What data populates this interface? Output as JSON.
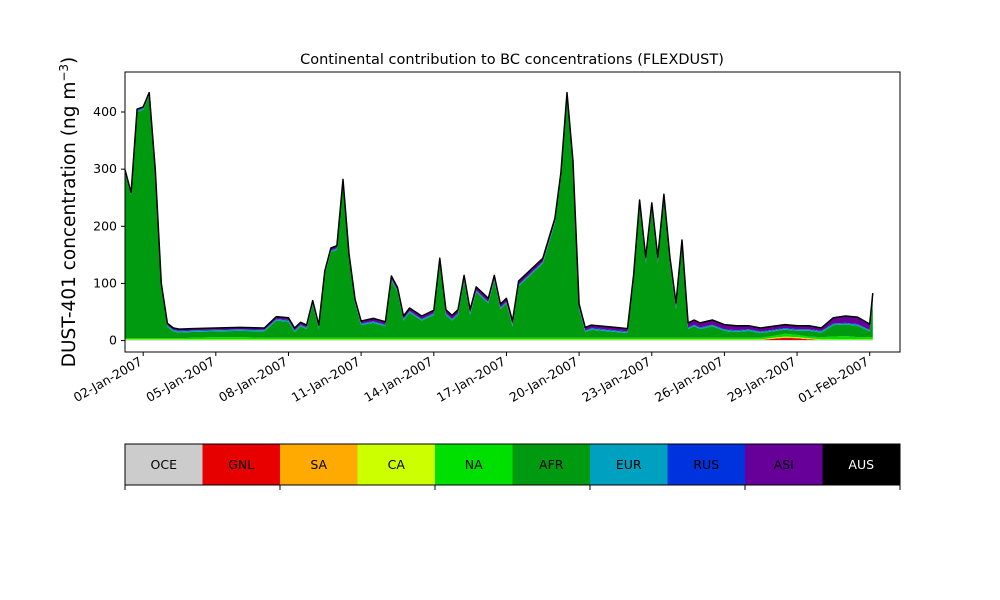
{
  "chart_data": {
    "type": "area",
    "stacked": true,
    "title": "Continental contribution to BC concentrations (FLEXDUST)",
    "ylabel_prefix": "DUST-401 concentration (ng m",
    "ylabel_sup": "−3",
    "ylabel_suffix": ")",
    "xlabel": "",
    "xlim": [
      "2007-01-01T06:00",
      "2007-02-02T06:00"
    ],
    "ylim": [
      -20,
      470
    ],
    "yticks": [
      0,
      100,
      200,
      300,
      400
    ],
    "xticks": [
      {
        "date": "2007-01-02",
        "label": "02-Jan-2007"
      },
      {
        "date": "2007-01-05",
        "label": "05-Jan-2007"
      },
      {
        "date": "2007-01-08",
        "label": "08-Jan-2007"
      },
      {
        "date": "2007-01-11",
        "label": "11-Jan-2007"
      },
      {
        "date": "2007-01-14",
        "label": "14-Jan-2007"
      },
      {
        "date": "2007-01-17",
        "label": "17-Jan-2007"
      },
      {
        "date": "2007-01-20",
        "label": "20-Jan-2007"
      },
      {
        "date": "2007-01-23",
        "label": "23-Jan-2007"
      },
      {
        "date": "2007-01-26",
        "label": "26-Jan-2007"
      },
      {
        "date": "2007-01-29",
        "label": "29-Jan-2007"
      },
      {
        "date": "2007-02-01",
        "label": "01-Feb-2007"
      }
    ],
    "grid": false,
    "x": [
      "2007-01-01T06:00",
      "2007-01-01T12:00",
      "2007-01-01T18:00",
      "2007-01-02T00:00",
      "2007-01-02T06:00",
      "2007-01-02T12:00",
      "2007-01-02T18:00",
      "2007-01-03T00:00",
      "2007-01-03T06:00",
      "2007-01-03T12:00",
      "2007-01-04T00:00",
      "2007-01-05T00:00",
      "2007-01-06T00:00",
      "2007-01-07T00:00",
      "2007-01-07T12:00",
      "2007-01-08T00:00",
      "2007-01-08T06:00",
      "2007-01-08T12:00",
      "2007-01-08T18:00",
      "2007-01-09T00:00",
      "2007-01-09T06:00",
      "2007-01-09T12:00",
      "2007-01-09T18:00",
      "2007-01-10T00:00",
      "2007-01-10T06:00",
      "2007-01-10T12:00",
      "2007-01-10T18:00",
      "2007-01-11T00:00",
      "2007-01-11T12:00",
      "2007-01-12T00:00",
      "2007-01-12T06:00",
      "2007-01-12T12:00",
      "2007-01-12T18:00",
      "2007-01-13T00:00",
      "2007-01-13T12:00",
      "2007-01-14T00:00",
      "2007-01-14T06:00",
      "2007-01-14T12:00",
      "2007-01-14T18:00",
      "2007-01-15T00:00",
      "2007-01-15T06:00",
      "2007-01-15T12:00",
      "2007-01-15T18:00",
      "2007-01-16T00:00",
      "2007-01-16T06:00",
      "2007-01-16T12:00",
      "2007-01-16T18:00",
      "2007-01-17T00:00",
      "2007-01-17T06:00",
      "2007-01-17T12:00",
      "2007-01-17T18:00",
      "2007-01-18T00:00",
      "2007-01-18T12:00",
      "2007-01-19T00:00",
      "2007-01-19T06:00",
      "2007-01-19T12:00",
      "2007-01-19T18:00",
      "2007-01-20T00:00",
      "2007-01-20T06:00",
      "2007-01-20T12:00",
      "2007-01-21T00:00",
      "2007-01-21T12:00",
      "2007-01-22T00:00",
      "2007-01-22T06:00",
      "2007-01-22T12:00",
      "2007-01-22T18:00",
      "2007-01-23T00:00",
      "2007-01-23T06:00",
      "2007-01-23T12:00",
      "2007-01-23T18:00",
      "2007-01-24T00:00",
      "2007-01-24T06:00",
      "2007-01-24T12:00",
      "2007-01-24T18:00",
      "2007-01-25T00:00",
      "2007-01-25T12:00",
      "2007-01-26T00:00",
      "2007-01-26T12:00",
      "2007-01-27T00:00",
      "2007-01-27T12:00",
      "2007-01-28T00:00",
      "2007-01-28T12:00",
      "2007-01-29T00:00",
      "2007-01-29T12:00",
      "2007-01-30T00:00",
      "2007-01-30T12:00",
      "2007-01-31T00:00",
      "2007-01-31T12:00",
      "2007-02-01T00:00",
      "2007-02-01T03:00"
    ],
    "series": [
      {
        "name": "OCE",
        "color": "#cccccc",
        "values": [
          1,
          1,
          1,
          1,
          1,
          1,
          1,
          1,
          1,
          1,
          1,
          1,
          1,
          1,
          1,
          1,
          1,
          1,
          1,
          1,
          1,
          1,
          1,
          1,
          1,
          1,
          1,
          1,
          1,
          1,
          1,
          1,
          1,
          1,
          1,
          1,
          1,
          1,
          1,
          1,
          1,
          1,
          1,
          1,
          1,
          1,
          1,
          1,
          1,
          1,
          1,
          1,
          1,
          1,
          1,
          1,
          1,
          1,
          1,
          1,
          1,
          1,
          1,
          1,
          1,
          1,
          1,
          1,
          1,
          1,
          1,
          1,
          1,
          1,
          1,
          1,
          1,
          1,
          1,
          1,
          1,
          1,
          1,
          1,
          1,
          1,
          1,
          1,
          1,
          1
        ]
      },
      {
        "name": "GNL",
        "color": "#e60000",
        "values": [
          0,
          0,
          0,
          0,
          0,
          0,
          0,
          0,
          0,
          0,
          0,
          0,
          0,
          0,
          0,
          0,
          0,
          0,
          0,
          0,
          0,
          0,
          0,
          0,
          0,
          0,
          0,
          0,
          0,
          0,
          0,
          0,
          0,
          0,
          0,
          0,
          0,
          0,
          0,
          0,
          0,
          0,
          0,
          0,
          0,
          0,
          0,
          0,
          0,
          0,
          0,
          0,
          0,
          0,
          0,
          0,
          0,
          0,
          0,
          0,
          0,
          0,
          0,
          0,
          0,
          0,
          0,
          0,
          0,
          0,
          0,
          0,
          0,
          0,
          0,
          0,
          0,
          0,
          0,
          0,
          2,
          4,
          3,
          1,
          0,
          0,
          0,
          0,
          0,
          0
        ]
      },
      {
        "name": "SA",
        "color": "#ffaa00",
        "values": [
          0,
          0,
          0,
          0,
          0,
          0,
          0,
          0,
          0,
          0,
          0,
          0,
          0,
          0,
          0,
          0,
          0,
          0,
          0,
          0,
          0,
          0,
          0,
          0,
          0,
          0,
          0,
          0,
          0,
          0,
          0,
          0,
          0,
          0,
          0,
          0,
          0,
          0,
          0,
          0,
          0,
          0,
          0,
          0,
          0,
          0,
          0,
          0,
          0,
          0,
          0,
          0,
          0,
          0,
          0,
          0,
          0,
          0,
          0,
          0,
          0,
          0,
          0,
          0,
          0,
          0,
          0,
          0,
          0,
          0,
          0,
          0,
          0,
          0,
          0,
          0,
          0,
          0,
          0,
          0,
          1,
          1,
          1,
          1,
          0,
          0,
          0,
          0,
          0,
          0
        ]
      },
      {
        "name": "CA",
        "color": "#ccff00",
        "values": [
          1,
          1,
          1,
          1,
          1,
          1,
          1,
          1,
          1,
          1,
          1,
          1,
          1,
          1,
          1,
          1,
          1,
          1,
          1,
          1,
          1,
          1,
          1,
          1,
          1,
          1,
          1,
          1,
          1,
          1,
          1,
          1,
          1,
          1,
          1,
          1,
          1,
          1,
          1,
          1,
          1,
          1,
          1,
          1,
          1,
          1,
          1,
          1,
          1,
          1,
          1,
          1,
          1,
          1,
          1,
          1,
          1,
          1,
          1,
          1,
          1,
          1,
          1,
          1,
          1,
          1,
          1,
          1,
          1,
          1,
          1,
          1,
          1,
          1,
          1,
          1,
          1,
          1,
          1,
          1,
          1,
          1,
          1,
          1,
          1,
          1,
          1,
          1,
          1,
          1
        ]
      },
      {
        "name": "NA",
        "color": "#00e000",
        "values": [
          2,
          2,
          2,
          2,
          2,
          2,
          2,
          2,
          2,
          2,
          3,
          4,
          4,
          3,
          3,
          3,
          3,
          3,
          3,
          3,
          3,
          3,
          3,
          3,
          3,
          3,
          3,
          3,
          3,
          3,
          3,
          3,
          3,
          3,
          3,
          3,
          3,
          3,
          3,
          3,
          3,
          3,
          3,
          3,
          3,
          3,
          3,
          3,
          3,
          3,
          3,
          3,
          3,
          3,
          3,
          3,
          3,
          3,
          3,
          3,
          3,
          3,
          3,
          3,
          3,
          3,
          3,
          3,
          3,
          3,
          3,
          3,
          3,
          3,
          3,
          3,
          3,
          3,
          3,
          3,
          3,
          5,
          4,
          3,
          4,
          5,
          6,
          4,
          4,
          4
        ]
      },
      {
        "name": "AFR",
        "color": "#009a10",
        "values": [
          290,
          250,
          396,
          400,
          425,
          290,
          90,
          20,
          12,
          10,
          10,
          10,
          11,
          11,
          30,
          28,
          10,
          20,
          15,
          58,
          15,
          110,
          150,
          154,
          270,
          140,
          60,
          22,
          26,
          20,
          100,
          80,
          30,
          44,
          30,
          40,
          130,
          40,
          30,
          40,
          100,
          40,
          80,
          70,
          60,
          100,
          50,
          60,
          20,
          90,
          100,
          110,
          130,
          200,
          280,
          420,
          300,
          50,
          10,
          14,
          12,
          10,
          8,
          100,
          230,
          130,
          225,
          130,
          240,
          130,
          50,
          160,
          15,
          20,
          15,
          20,
          12,
          10,
          12,
          8,
          8,
          7,
          7,
          10,
          8,
          20,
          20,
          20,
          10,
          60
        ]
      },
      {
        "name": "EUR",
        "color": "#00a0c0",
        "values": [
          2,
          2,
          2,
          2,
          2,
          2,
          2,
          2,
          2,
          2,
          2,
          2,
          2,
          2,
          2,
          2,
          2,
          2,
          2,
          2,
          2,
          2,
          2,
          2,
          2,
          2,
          2,
          2,
          2,
          2,
          2,
          2,
          2,
          2,
          2,
          2,
          2,
          2,
          2,
          2,
          2,
          2,
          2,
          2,
          2,
          2,
          2,
          2,
          2,
          2,
          2,
          2,
          2,
          2,
          2,
          2,
          2,
          2,
          2,
          2,
          2,
          2,
          2,
          2,
          2,
          2,
          2,
          2,
          2,
          2,
          2,
          2,
          2,
          2,
          2,
          2,
          2,
          2,
          2,
          2,
          2,
          2,
          2,
          2,
          2,
          2,
          2,
          2,
          2,
          2
        ]
      },
      {
        "name": "RUS",
        "color": "#0033dd",
        "values": [
          1,
          1,
          1,
          1,
          1,
          1,
          1,
          1,
          1,
          1,
          1,
          1,
          1,
          1,
          1,
          1,
          1,
          1,
          1,
          1,
          1,
          1,
          1,
          1,
          1,
          1,
          1,
          1,
          1,
          1,
          1,
          1,
          1,
          1,
          1,
          1,
          1,
          1,
          1,
          1,
          1,
          1,
          1,
          1,
          1,
          1,
          1,
          1,
          1,
          1,
          1,
          1,
          1,
          1,
          1,
          1,
          1,
          1,
          1,
          1,
          1,
          1,
          1,
          1,
          1,
          1,
          1,
          1,
          1,
          1,
          1,
          1,
          1,
          1,
          1,
          1,
          1,
          1,
          1,
          1,
          1,
          1,
          1,
          1,
          1,
          1,
          1,
          1,
          1,
          1
        ]
      },
      {
        "name": "ASI",
        "color": "#660099",
        "values": [
          2,
          2,
          2,
          2,
          2,
          2,
          3,
          3,
          3,
          3,
          3,
          3,
          3,
          3,
          4,
          4,
          4,
          4,
          4,
          4,
          4,
          4,
          4,
          4,
          4,
          4,
          4,
          4,
          5,
          5,
          5,
          5,
          5,
          5,
          5,
          5,
          6,
          6,
          6,
          6,
          6,
          6,
          6,
          6,
          6,
          6,
          6,
          6,
          6,
          6,
          6,
          6,
          6,
          6,
          6,
          6,
          6,
          6,
          5,
          5,
          5,
          5,
          5,
          7,
          8,
          8,
          8,
          8,
          8,
          8,
          8,
          8,
          8,
          8,
          8,
          8,
          8,
          8,
          6,
          6,
          6,
          6,
          6,
          6,
          5,
          10,
          12,
          12,
          10,
          14
        ]
      },
      {
        "name": "AUS",
        "color": "#000000",
        "values": [
          0,
          0,
          0,
          0,
          0,
          0,
          0,
          0,
          0,
          0,
          0,
          0,
          0,
          0,
          0,
          0,
          0,
          0,
          0,
          0,
          0,
          0,
          0,
          0,
          0,
          0,
          0,
          0,
          0,
          0,
          0,
          0,
          0,
          0,
          0,
          0,
          0,
          0,
          0,
          0,
          0,
          0,
          0,
          0,
          0,
          0,
          0,
          0,
          0,
          0,
          0,
          0,
          0,
          0,
          0,
          0,
          0,
          0,
          0,
          0,
          0,
          0,
          0,
          0,
          0,
          0,
          0,
          0,
          0,
          0,
          0,
          0,
          0,
          0,
          0,
          0,
          0,
          0,
          0,
          0,
          0,
          0,
          0,
          0,
          0,
          0,
          0,
          0,
          0,
          0
        ]
      }
    ],
    "colorbar": {
      "labels": [
        "OCE",
        "GNL",
        "SA",
        "CA",
        "NA",
        "AFR",
        "EUR",
        "RUS",
        "ASI",
        "AUS"
      ],
      "colors": [
        "#cccccc",
        "#e60000",
        "#ffaa00",
        "#ccff00",
        "#00e000",
        "#009a10",
        "#00a0c0",
        "#0033dd",
        "#660099",
        "#000000"
      ],
      "text_colors": [
        "#000000",
        "#000000",
        "#000000",
        "#000000",
        "#000000",
        "#000000",
        "#000000",
        "#000000",
        "#000000",
        "#ffffff"
      ]
    }
  }
}
